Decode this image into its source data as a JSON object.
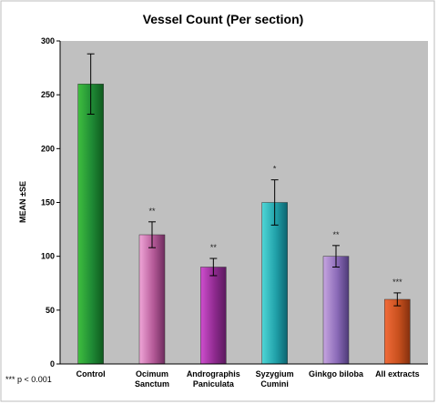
{
  "chart_data": {
    "type": "bar",
    "title": "Vessel Count  (Per section)",
    "xlabel": "",
    "ylabel": "MEAN ±SE",
    "ylim": [
      0,
      300
    ],
    "yticks": [
      0,
      50,
      100,
      150,
      200,
      250,
      300
    ],
    "grid": false,
    "legend": "none",
    "categories": [
      [
        "Control"
      ],
      [
        "Ocimum",
        "Sanctum"
      ],
      [
        "Andrographis",
        "Paniculata"
      ],
      [
        "Syzygium",
        "Cumini"
      ],
      [
        "Ginkgo biloba"
      ],
      [
        "All extracts"
      ]
    ],
    "values": [
      260,
      120,
      90,
      150,
      100,
      60
    ],
    "errors": [
      28,
      12,
      8,
      21,
      10,
      6
    ],
    "significance": [
      "",
      "**",
      "**",
      "*",
      "**",
      "***"
    ],
    "bar_colors": [
      [
        "#3fbf3f",
        "#1f8a35",
        "#0f5a1e"
      ],
      [
        "#f0a6d8",
        "#b55a98",
        "#6e2c5e"
      ],
      [
        "#cf4fcf",
        "#8e2a8e",
        "#5a1a5e"
      ],
      [
        "#4fd6d6",
        "#20a0a8",
        "#0c6470"
      ],
      [
        "#c7a6e0",
        "#8a6ab8",
        "#4e3a78"
      ],
      [
        "#f26c3a",
        "#c8501e",
        "#84300e"
      ]
    ],
    "plot_background": "#c0c0c0",
    "footnote": "*** p < 0.001"
  }
}
